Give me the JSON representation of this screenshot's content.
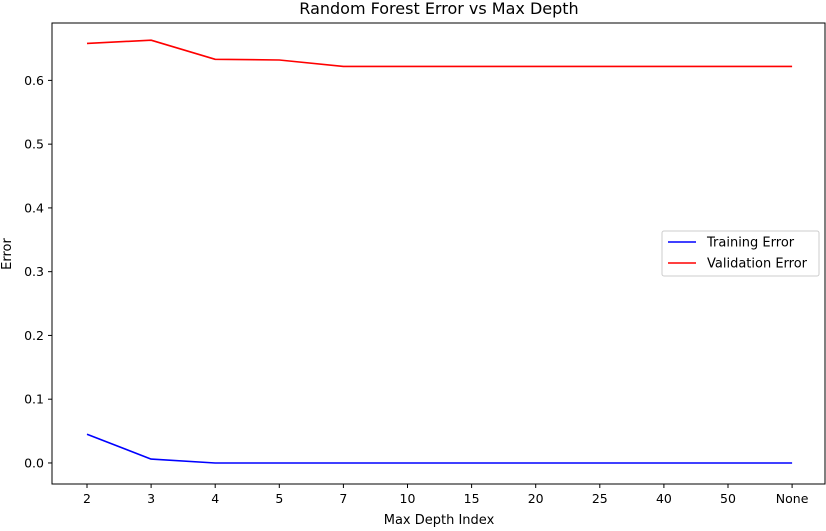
{
  "chart_data": {
    "type": "line",
    "title": "Random Forest Error vs Max Depth",
    "xlabel": "Max Depth Index",
    "ylabel": "Error",
    "categories": [
      "2",
      "3",
      "4",
      "5",
      "7",
      "10",
      "15",
      "20",
      "25",
      "40",
      "50",
      "None"
    ],
    "ylim": [
      -0.033,
      0.69
    ],
    "yticks": [
      "0.0",
      "0.1",
      "0.2",
      "0.3",
      "0.4",
      "0.5",
      "0.6"
    ],
    "grid": false,
    "legend_position": "center-right",
    "series": [
      {
        "name": "Training Error",
        "color": "#0000ff",
        "values": [
          0.045,
          0.006,
          0.0,
          0.0,
          0.0,
          0.0,
          0.0,
          0.0,
          0.0,
          0.0,
          0.0,
          0.0
        ]
      },
      {
        "name": "Validation Error",
        "color": "#ff0000",
        "values": [
          0.658,
          0.663,
          0.633,
          0.632,
          0.622,
          0.622,
          0.622,
          0.622,
          0.622,
          0.622,
          0.622,
          0.622
        ]
      }
    ]
  }
}
